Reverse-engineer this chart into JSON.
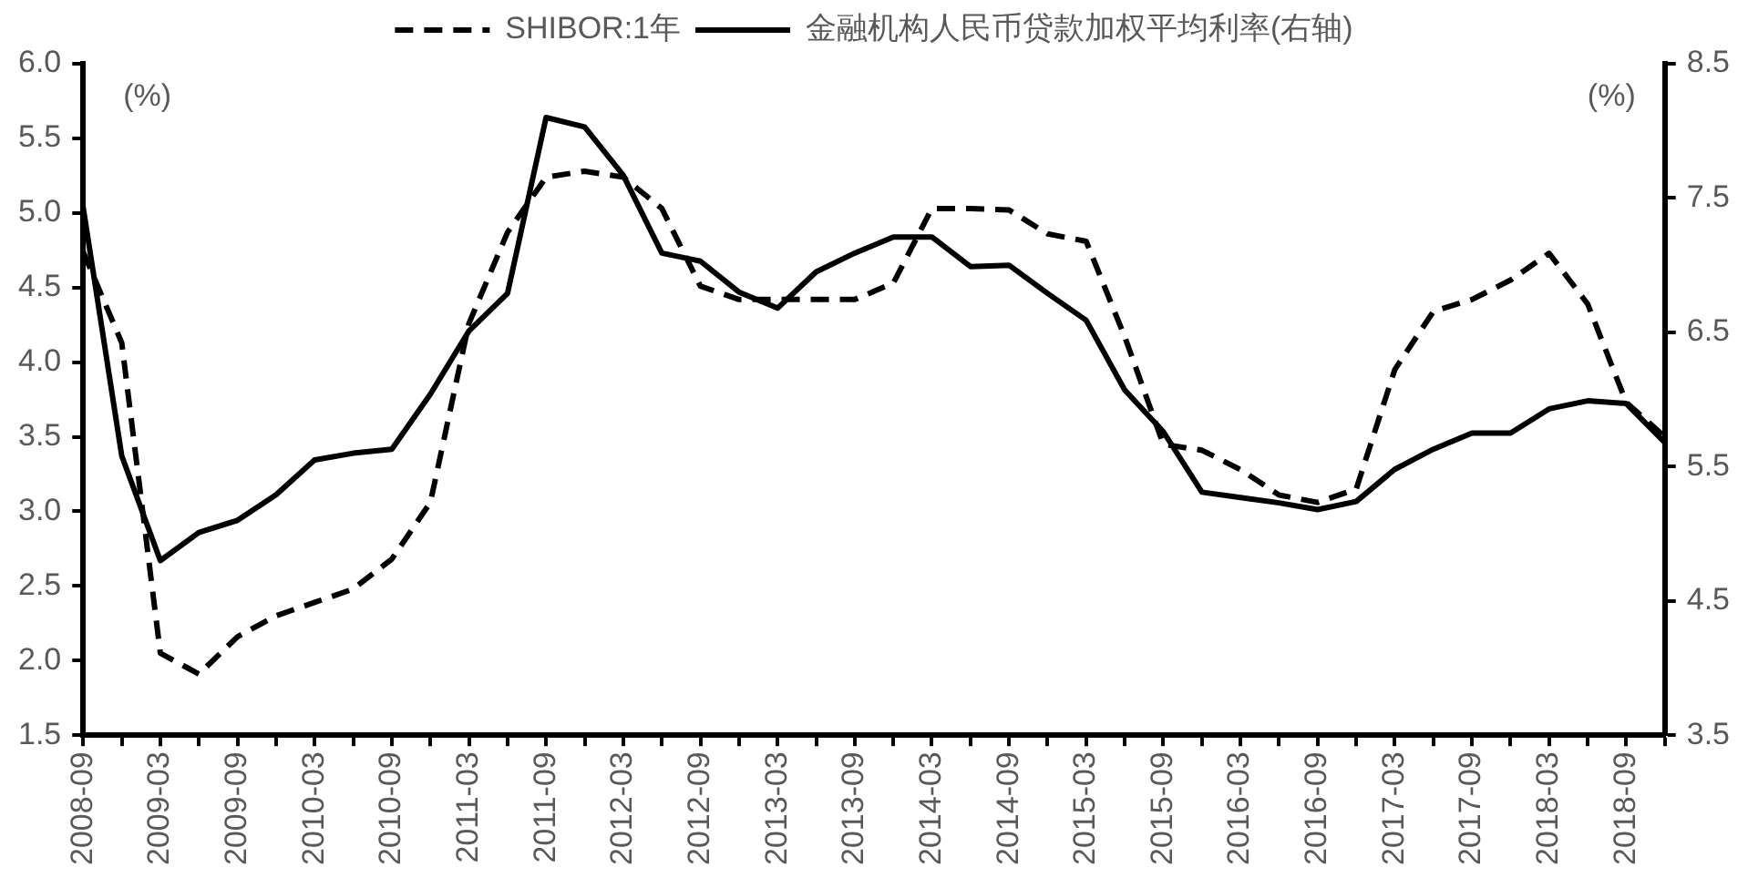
{
  "chart_data": {
    "type": "line",
    "categories": [
      "2008-09",
      null,
      "2009-03",
      null,
      "2009-09",
      null,
      "2010-03",
      null,
      "2010-09",
      null,
      "2011-03",
      null,
      "2011-09",
      null,
      "2012-03",
      null,
      "2012-09",
      null,
      "2013-03",
      null,
      "2013-09",
      null,
      "2014-03",
      null,
      "2014-09",
      null,
      "2015-03",
      null,
      "2015-09",
      null,
      "2016-03",
      null,
      "2016-09",
      null,
      "2017-03",
      null,
      "2017-09",
      null,
      "2018-03",
      null,
      "2018-09",
      null
    ],
    "series": [
      {
        "name": "SHIBOR:1年",
        "color": "#000000",
        "line_style": "dashed",
        "values": [
          4.74,
          4.13,
          2.05,
          1.91,
          2.16,
          2.3,
          2.39,
          2.48,
          2.68,
          3.06,
          4.26,
          4.87,
          5.24,
          5.28,
          5.24,
          5.03,
          4.51,
          4.42,
          4.42,
          4.42,
          4.42,
          4.53,
          5.03,
          5.03,
          5.02,
          4.86,
          4.81,
          4.17,
          3.45,
          3.41,
          3.28,
          3.11,
          3.06,
          3.15,
          3.95,
          4.34,
          4.42,
          4.55,
          4.73,
          4.39,
          3.73,
          3.5
        ]
      },
      {
        "name": "金融机构人民币贷款加权平均利率(右轴)",
        "color": "#000000",
        "line_style": "solid",
        "axis": "y2",
        "values": [
          7.43,
          5.58,
          4.8,
          5.01,
          5.1,
          5.29,
          5.55,
          5.6,
          5.63,
          6.04,
          6.51,
          6.79,
          8.1,
          8.03,
          7.67,
          7.09,
          7.03,
          6.8,
          6.68,
          6.95,
          7.09,
          7.21,
          7.21,
          6.99,
          7.0,
          6.79,
          6.59,
          6.07,
          5.76,
          5.31,
          5.27,
          5.23,
          5.18,
          5.24,
          5.48,
          5.63,
          5.75,
          5.75,
          5.93,
          5.99,
          5.97,
          5.68
        ]
      }
    ],
    "ylabel": "(%)",
    "y2label": "(%)",
    "ylim": [
      1.5,
      6.0
    ],
    "yticks": [
      {
        "value": 1.5,
        "label": "1.5"
      },
      {
        "value": 2,
        "label": "2.0"
      },
      {
        "value": 2.5,
        "label": "2.5"
      },
      {
        "value": 3,
        "label": "3.0"
      },
      {
        "value": 3.5,
        "label": "3.5"
      },
      {
        "value": 4,
        "label": "4.0"
      },
      {
        "value": 4.5,
        "label": "4.5"
      },
      {
        "value": 5,
        "label": "5.0"
      },
      {
        "value": 5.5,
        "label": "5.5"
      },
      {
        "value": 6,
        "label": "6.0"
      }
    ],
    "y2lim": [
      3.5,
      8.5
    ],
    "y2ticks": [
      3.5,
      4.5,
      5.5,
      6.5,
      7.5,
      8.5
    ],
    "legend": "top",
    "grid": false,
    "marker": "none"
  }
}
